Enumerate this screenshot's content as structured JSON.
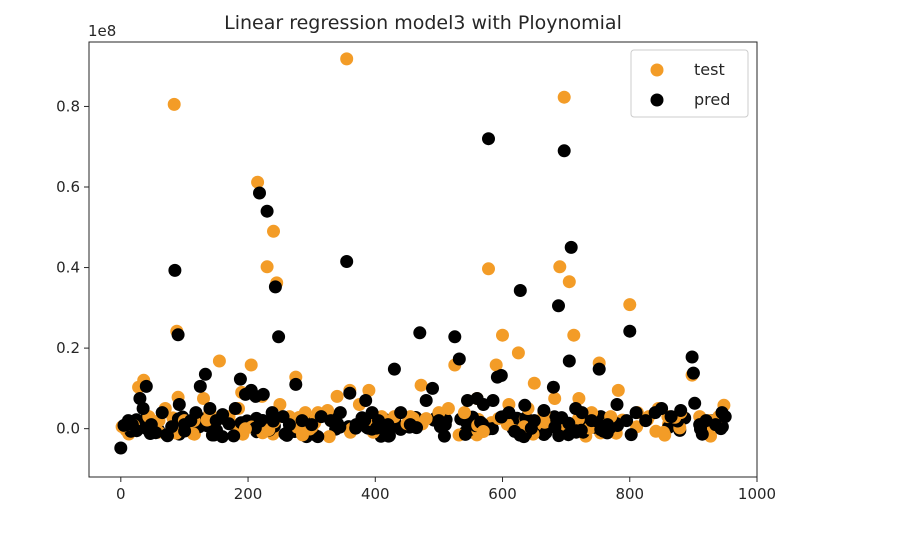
{
  "chart_data": {
    "type": "scatter",
    "title": "Linear regression model3 with Ploynomial",
    "xlabel": "",
    "ylabel": "",
    "offset_label": "1e8",
    "xlim": [
      -50,
      1000
    ],
    "ylim": [
      -0.12,
      0.96
    ],
    "x_ticks": [
      0,
      200,
      400,
      600,
      800,
      1000
    ],
    "x_tick_labels": [
      "0",
      "200",
      "400",
      "600",
      "800",
      "1000"
    ],
    "y_ticks": [
      0.0,
      0.2,
      0.4,
      0.6,
      0.8
    ],
    "y_tick_labels": [
      "0.0",
      "0.2",
      "0.4",
      "0.6",
      "0.8"
    ],
    "grid": false,
    "legend_position": "top-right",
    "colors": {
      "test": "#F39C27",
      "pred": "#000000",
      "axes": "#262626"
    },
    "series": [
      {
        "name": "test",
        "points": [
          [
            2,
            0.005
          ],
          [
            10,
            0.012
          ],
          [
            20,
            0.008
          ],
          [
            28,
            0.103
          ],
          [
            36,
            0.12
          ],
          [
            44,
            0.03
          ],
          [
            60,
            0.02
          ],
          [
            70,
            0.05
          ],
          [
            84,
            0.805
          ],
          [
            88,
            0.242
          ],
          [
            90,
            0.078
          ],
          [
            100,
            0.02
          ],
          [
            115,
            0.02
          ],
          [
            130,
            0.075
          ],
          [
            140,
            0.04
          ],
          [
            155,
            0.168
          ],
          [
            170,
            0.03
          ],
          [
            185,
            0.05
          ],
          [
            190,
            0.09
          ],
          [
            205,
            0.158
          ],
          [
            215,
            0.612
          ],
          [
            222,
            0.08
          ],
          [
            230,
            0.402
          ],
          [
            240,
            0.49
          ],
          [
            245,
            0.362
          ],
          [
            250,
            0.06
          ],
          [
            265,
            0.03
          ],
          [
            275,
            0.128
          ],
          [
            290,
            0.04
          ],
          [
            310,
            0.04
          ],
          [
            325,
            0.045
          ],
          [
            340,
            0.08
          ],
          [
            355,
            0.918
          ],
          [
            360,
            0.095
          ],
          [
            375,
            0.06
          ],
          [
            390,
            0.095
          ],
          [
            410,
            0.03
          ],
          [
            430,
            0.03
          ],
          [
            455,
            0.03
          ],
          [
            472,
            0.108
          ],
          [
            480,
            0.025
          ],
          [
            500,
            0.04
          ],
          [
            515,
            0.05
          ],
          [
            525,
            0.158
          ],
          [
            540,
            0.04
          ],
          [
            560,
            0.075
          ],
          [
            578,
            0.397
          ],
          [
            590,
            0.158
          ],
          [
            600,
            0.232
          ],
          [
            610,
            0.06
          ],
          [
            625,
            0.188
          ],
          [
            640,
            0.05
          ],
          [
            650,
            0.113
          ],
          [
            665,
            0.04
          ],
          [
            682,
            0.075
          ],
          [
            690,
            0.402
          ],
          [
            697,
            0.823
          ],
          [
            705,
            0.365
          ],
          [
            712,
            0.232
          ],
          [
            720,
            0.075
          ],
          [
            740,
            0.04
          ],
          [
            752,
            0.163
          ],
          [
            770,
            0.03
          ],
          [
            782,
            0.095
          ],
          [
            800,
            0.308
          ],
          [
            812,
            0.04
          ],
          [
            830,
            0.03
          ],
          [
            845,
            0.05
          ],
          [
            860,
            0.03
          ],
          [
            880,
            0.04
          ],
          [
            898,
            0.133
          ],
          [
            910,
            0.03
          ],
          [
            925,
            0.02
          ],
          [
            940,
            0.03
          ],
          [
            948,
            0.058
          ]
        ]
      },
      {
        "name": "pred",
        "points": [
          [
            0,
            -0.048
          ],
          [
            5,
            0.008
          ],
          [
            12,
            0.02
          ],
          [
            18,
            0.01
          ],
          [
            25,
            -0.005
          ],
          [
            30,
            0.075
          ],
          [
            35,
            0.05
          ],
          [
            40,
            0.105
          ],
          [
            48,
            0.01
          ],
          [
            55,
            -0.01
          ],
          [
            65,
            0.04
          ],
          [
            72,
            -0.015
          ],
          [
            80,
            0.005
          ],
          [
            85,
            0.393
          ],
          [
            90,
            0.233
          ],
          [
            92,
            0.06
          ],
          [
            100,
            0.01
          ],
          [
            110,
            0.02
          ],
          [
            118,
            0.04
          ],
          [
            125,
            0.105
          ],
          [
            133,
            0.135
          ],
          [
            140,
            0.05
          ],
          [
            150,
            0.02
          ],
          [
            160,
            0.035
          ],
          [
            170,
            0.012
          ],
          [
            180,
            0.05
          ],
          [
            188,
            0.123
          ],
          [
            196,
            0.085
          ],
          [
            205,
            0.095
          ],
          [
            212,
            0.08
          ],
          [
            218,
            0.585
          ],
          [
            224,
            0.085
          ],
          [
            230,
            0.54
          ],
          [
            238,
            0.04
          ],
          [
            243,
            0.352
          ],
          [
            248,
            0.228
          ],
          [
            255,
            0.03
          ],
          [
            265,
            0.01
          ],
          [
            275,
            0.11
          ],
          [
            285,
            0.02
          ],
          [
            300,
            0.01
          ],
          [
            315,
            0.03
          ],
          [
            330,
            0.02
          ],
          [
            345,
            0.04
          ],
          [
            355,
            0.415
          ],
          [
            360,
            0.088
          ],
          [
            370,
            0.01
          ],
          [
            385,
            0.07
          ],
          [
            395,
            0.04
          ],
          [
            405,
            0.02
          ],
          [
            420,
            0.01
          ],
          [
            430,
            0.148
          ],
          [
            440,
            0.04
          ],
          [
            455,
            0.01
          ],
          [
            470,
            0.238
          ],
          [
            480,
            0.07
          ],
          [
            490,
            0.1
          ],
          [
            500,
            0.02
          ],
          [
            510,
            0.01
          ],
          [
            525,
            0.228
          ],
          [
            532,
            0.173
          ],
          [
            545,
            0.07
          ],
          [
            560,
            0.075
          ],
          [
            570,
            0.06
          ],
          [
            578,
            0.72
          ],
          [
            585,
            0.07
          ],
          [
            592,
            0.128
          ],
          [
            598,
            0.132
          ],
          [
            610,
            0.04
          ],
          [
            628,
            0.343
          ],
          [
            635,
            0.058
          ],
          [
            650,
            0.02
          ],
          [
            665,
            0.045
          ],
          [
            680,
            0.103
          ],
          [
            688,
            0.305
          ],
          [
            697,
            0.69
          ],
          [
            705,
            0.168
          ],
          [
            708,
            0.45
          ],
          [
            715,
            0.05
          ],
          [
            725,
            0.04
          ],
          [
            740,
            0.02
          ],
          [
            752,
            0.148
          ],
          [
            765,
            0.01
          ],
          [
            780,
            0.06
          ],
          [
            795,
            0.02
          ],
          [
            800,
            0.242
          ],
          [
            810,
            0.04
          ],
          [
            825,
            0.02
          ],
          [
            840,
            0.04
          ],
          [
            850,
            0.05
          ],
          [
            865,
            0.03
          ],
          [
            880,
            0.045
          ],
          [
            898,
            0.178
          ],
          [
            900,
            0.138
          ],
          [
            902,
            0.063
          ],
          [
            910,
            0.01
          ],
          [
            920,
            0.02
          ],
          [
            935,
            0.01
          ],
          [
            945,
            0.04
          ],
          [
            950,
            0.03
          ]
        ]
      }
    ],
    "dense_band": {
      "x_range": [
        0,
        950
      ],
      "y_range": [
        -0.02,
        0.03
      ],
      "count": 240
    }
  }
}
